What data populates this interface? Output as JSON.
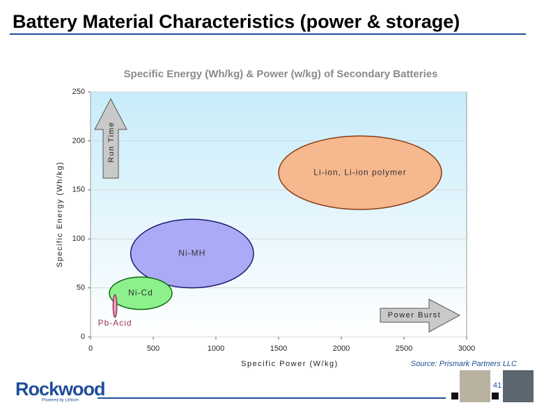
{
  "header": {
    "title": "Battery Material Characteristics (power & storage)"
  },
  "chart_data": {
    "type": "region",
    "title": "Specific Energy (Wh/kg) & Power (w/kg) of Secondary Batteries",
    "x_label": "Specific Power (W/kg)",
    "y_label": "Specific Energy (Wh/kg)",
    "xlim": [
      0,
      3000
    ],
    "xticks": [
      0,
      500,
      1000,
      1500,
      2000,
      2500,
      3000
    ],
    "ylim": [
      0,
      250
    ],
    "yticks": [
      0,
      50,
      100,
      150,
      200,
      250
    ],
    "grid": true,
    "series": [
      {
        "name": "Li-ion, Li-ion polymer",
        "color": "#f6b88e",
        "edge_color": "#8a3a10",
        "x": [
          1500,
          2800
        ],
        "y": [
          130,
          205
        ]
      },
      {
        "name": "Ni-MH",
        "color": "#aaaaf6",
        "edge_color": "#1c1c70",
        "x": [
          320,
          1300
        ],
        "y": [
          50,
          120
        ]
      },
      {
        "name": "Ni-Cd",
        "color": "#8cf08c",
        "edge_color": "#0b6a0b",
        "x": [
          150,
          650
        ],
        "y": [
          28,
          61
        ]
      },
      {
        "name": "Pb-Acid",
        "color": "#e8a0c0",
        "edge_color": "#993355",
        "x": [
          180,
          210
        ],
        "y": [
          20,
          43
        ]
      }
    ],
    "annotations": [
      "Run Time",
      "Power Burst"
    ]
  },
  "source": "Source:  Prismark Partners LLC",
  "page_number": "41",
  "logo": {
    "name": "Rockwood",
    "tagline": "Powered by Lithium"
  }
}
